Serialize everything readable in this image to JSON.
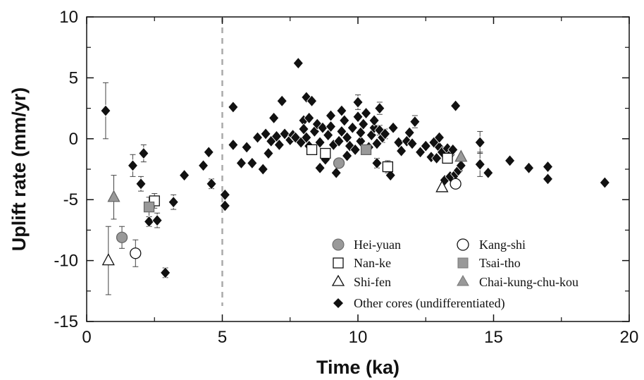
{
  "chart_data": {
    "type": "scatter",
    "xlabel": "Time (ka)",
    "ylabel": "Uplift rate (mm/yr)",
    "xlim": [
      0,
      20
    ],
    "ylim": [
      -15,
      10
    ],
    "x_ticks": [
      0,
      5,
      10,
      15,
      20
    ],
    "y_ticks": [
      10,
      5,
      0,
      -5,
      -10,
      -15
    ],
    "x_tick_labels": [
      "0",
      "5",
      "10",
      "15",
      "20"
    ],
    "y_tick_labels": [
      "10",
      "5",
      "0",
      "-5",
      "-10",
      "-15"
    ],
    "reference_line": {
      "x": 5,
      "style": "dashed",
      "color": "#aaaaaa"
    },
    "legend_position": "bottom-right",
    "grid": false,
    "series": [
      {
        "name": "Hei-yuan",
        "marker": "circle",
        "fill": "#999999",
        "points": [
          [
            1.3,
            -8.1,
            0.9
          ],
          [
            9.3,
            -2.0,
            0
          ]
        ]
      },
      {
        "name": "Kang-shi",
        "marker": "circle",
        "fill": "#ffffff",
        "points": [
          [
            1.8,
            -9.4,
            1.1
          ],
          [
            13.6,
            -3.7,
            0
          ]
        ]
      },
      {
        "name": "Nan-ke",
        "marker": "square",
        "fill": "#ffffff",
        "points": [
          [
            2.5,
            -5.1,
            0.6
          ],
          [
            8.3,
            -0.9,
            0
          ],
          [
            8.8,
            -1.2,
            0
          ],
          [
            11.1,
            -2.3,
            0.5
          ],
          [
            13.3,
            -1.6,
            0
          ]
        ]
      },
      {
        "name": "Tsai-tho",
        "marker": "square",
        "fill": "#999999",
        "points": [
          [
            2.3,
            -5.6,
            0.8
          ],
          [
            10.3,
            -0.9,
            0
          ]
        ]
      },
      {
        "name": "Shi-fen",
        "marker": "triangle",
        "fill": "#ffffff",
        "points": [
          [
            0.8,
            -10.0,
            2.8
          ],
          [
            13.1,
            -4.0,
            0
          ]
        ]
      },
      {
        "name": "Chai-kung-chu-kou",
        "marker": "triangle",
        "fill": "#999999",
        "points": [
          [
            1.0,
            -4.8,
            1.8
          ],
          [
            13.8,
            -1.5,
            0
          ]
        ]
      },
      {
        "name": "Other cores (undifferentiated)",
        "marker": "diamond",
        "fill": "#111111",
        "points": [
          [
            0.7,
            2.3,
            2.3
          ],
          [
            1.7,
            -2.2,
            0.9
          ],
          [
            2.0,
            -3.7,
            0.6
          ],
          [
            2.1,
            -1.2,
            0.7
          ],
          [
            2.3,
            -6.8,
            0.4
          ],
          [
            2.6,
            -6.7,
            0.6
          ],
          [
            2.9,
            -11.0,
            0.4
          ],
          [
            3.2,
            -5.2,
            0.6
          ],
          [
            3.6,
            -3.0,
            0
          ],
          [
            4.3,
            -2.2,
            0
          ],
          [
            4.5,
            -1.1,
            0
          ],
          [
            4.6,
            -3.7,
            0.4
          ],
          [
            5.1,
            -4.6,
            0
          ],
          [
            5.1,
            -5.5,
            0
          ],
          [
            5.4,
            -0.5,
            0
          ],
          [
            5.4,
            2.6,
            0
          ],
          [
            5.7,
            -2.0,
            0
          ],
          [
            5.9,
            -0.7,
            0
          ],
          [
            6.1,
            -2.0,
            0
          ],
          [
            6.3,
            0.1,
            0
          ],
          [
            6.5,
            -2.5,
            0
          ],
          [
            6.6,
            0.4,
            0
          ],
          [
            6.7,
            -1.2,
            0
          ],
          [
            6.8,
            -0.2,
            0
          ],
          [
            6.9,
            1.7,
            0
          ],
          [
            7.0,
            0.2,
            0
          ],
          [
            7.1,
            -0.5,
            0
          ],
          [
            7.3,
            0.4,
            0
          ],
          [
            7.2,
            3.1,
            0
          ],
          [
            7.5,
            -0.1,
            0
          ],
          [
            7.6,
            0.3,
            0
          ],
          [
            7.7,
            0.1,
            0
          ],
          [
            7.8,
            6.2,
            0
          ],
          [
            7.9,
            -0.3,
            0
          ],
          [
            8.0,
            1.5,
            0
          ],
          [
            8.0,
            0.8,
            0
          ],
          [
            8.1,
            3.4,
            0
          ],
          [
            8.1,
            0.1,
            0
          ],
          [
            8.2,
            1.7,
            0
          ],
          [
            8.3,
            3.1,
            0
          ],
          [
            8.2,
            -0.6,
            0
          ],
          [
            8.4,
            0.6,
            0
          ],
          [
            8.5,
            1.2,
            0
          ],
          [
            8.6,
            -0.3,
            0
          ],
          [
            8.7,
            0.9,
            0
          ],
          [
            8.6,
            -2.4,
            0
          ],
          [
            8.8,
            -1.7,
            0
          ],
          [
            8.9,
            0.3,
            0
          ],
          [
            9.0,
            1.9,
            0
          ],
          [
            9.0,
            1.0,
            0
          ],
          [
            9.1,
            -0.5,
            0
          ],
          [
            9.2,
            -2.8,
            0
          ],
          [
            9.3,
            -0.2,
            0
          ],
          [
            9.4,
            0.6,
            0
          ],
          [
            9.4,
            2.3,
            0
          ],
          [
            9.5,
            1.5,
            0
          ],
          [
            9.6,
            -1.4,
            0
          ],
          [
            9.6,
            0.1,
            0
          ],
          [
            9.7,
            -0.6,
            0
          ],
          [
            9.8,
            0.9,
            0
          ],
          [
            9.9,
            -0.9,
            0
          ],
          [
            10.0,
            1.8,
            0
          ],
          [
            10.0,
            3.0,
            0.6
          ],
          [
            10.1,
            -0.2,
            0
          ],
          [
            10.1,
            0.5,
            0
          ],
          [
            10.2,
            1.2,
            0
          ],
          [
            10.3,
            2.1,
            0
          ],
          [
            10.4,
            -0.7,
            0
          ],
          [
            10.5,
            0.3,
            0
          ],
          [
            10.6,
            0.9,
            0
          ],
          [
            10.6,
            1.5,
            0
          ],
          [
            10.7,
            -0.4,
            0
          ],
          [
            10.7,
            -2.0,
            0.4
          ],
          [
            10.8,
            2.5,
            0.5
          ],
          [
            10.8,
            0.7,
            0.4
          ],
          [
            10.9,
            0.1,
            0.4
          ],
          [
            11.0,
            0.4,
            0.4
          ],
          [
            11.2,
            -3.0,
            0
          ],
          [
            11.3,
            0.9,
            0
          ],
          [
            11.5,
            -0.3,
            0
          ],
          [
            11.6,
            -1.0,
            0
          ],
          [
            11.8,
            -0.2,
            0
          ],
          [
            11.9,
            0.5,
            0
          ],
          [
            12.0,
            -0.4,
            0
          ],
          [
            12.1,
            1.4,
            0.5
          ],
          [
            12.3,
            -1.1,
            0
          ],
          [
            12.5,
            -0.6,
            0
          ],
          [
            12.7,
            -1.5,
            0
          ],
          [
            12.8,
            -0.3,
            0
          ],
          [
            12.9,
            -1.6,
            0
          ],
          [
            13.0,
            -0.7,
            0
          ],
          [
            13.0,
            0.1,
            0
          ],
          [
            13.1,
            -1.1,
            0
          ],
          [
            13.2,
            -3.4,
            0
          ],
          [
            13.3,
            -0.8,
            0
          ],
          [
            13.4,
            -1.3,
            0
          ],
          [
            13.4,
            -3.1,
            0
          ],
          [
            13.5,
            -0.9,
            0
          ],
          [
            13.6,
            -2.9,
            0
          ],
          [
            13.6,
            2.7,
            0
          ],
          [
            13.7,
            -2.6,
            0
          ],
          [
            13.8,
            -2.2,
            0
          ],
          [
            14.5,
            -0.3,
            0.9
          ],
          [
            14.5,
            -2.1,
            1.0
          ],
          [
            14.8,
            -2.8,
            0
          ],
          [
            15.6,
            -1.8,
            0
          ],
          [
            16.3,
            -2.4,
            0
          ],
          [
            17.0,
            -2.3,
            0
          ],
          [
            17.0,
            -3.3,
            0
          ],
          [
            19.1,
            -3.6,
            0
          ]
        ]
      }
    ]
  }
}
